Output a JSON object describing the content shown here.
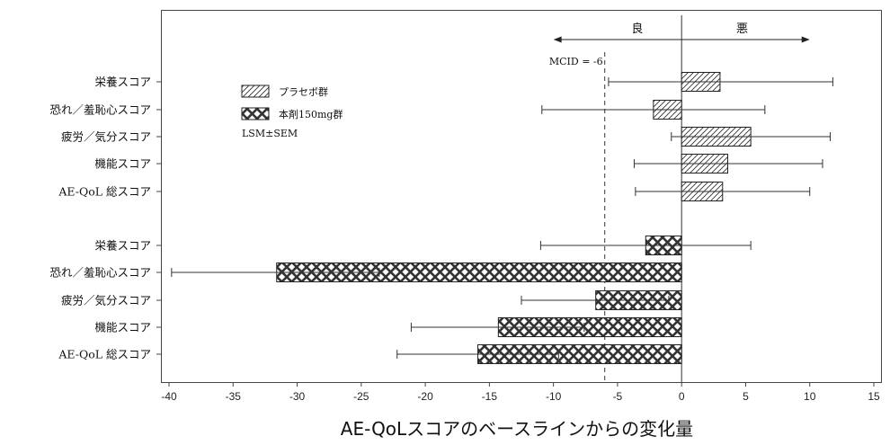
{
  "chart_data": {
    "type": "bar",
    "orientation": "horizontal",
    "xlabel": "AE-QoLスコアのベースラインからの変化量",
    "xlim": [
      -40,
      15
    ],
    "xticks": [
      -40,
      -35,
      -30,
      -25,
      -20,
      -15,
      -10,
      -5,
      0,
      5,
      10,
      15
    ],
    "grid": false,
    "legend_position": "upper-left inside plot",
    "legend_note": "LSM±SEM",
    "mcid": {
      "value": -6,
      "label": "MCID = -6"
    },
    "direction_labels": {
      "good": "良",
      "bad": "悪"
    },
    "series": [
      {
        "name": "プラセボ群",
        "pattern": "diagonal-hatch",
        "categories": [
          "栄養スコア",
          "恐れ／羞恥心スコア",
          "疲労／気分スコア",
          "機能スコア",
          "AE-QoL 総スコア"
        ],
        "values": [
          3.0,
          -2.2,
          5.4,
          3.6,
          3.2
        ],
        "err_low": [
          -5.7,
          -10.9,
          -0.8,
          -3.7,
          -3.6
        ],
        "err_high": [
          11.8,
          6.5,
          11.6,
          11.0,
          10.0
        ]
      },
      {
        "name": "本剤150mg群",
        "pattern": "cross-hatch",
        "categories": [
          "栄養スコア",
          "恐れ／羞恥心スコア",
          "疲労／気分スコア",
          "機能スコア",
          "AE-QoL 総スコア"
        ],
        "values": [
          -2.8,
          -31.6,
          -6.7,
          -14.3,
          -15.9
        ],
        "err_low": [
          -11.0,
          -39.8,
          -12.5,
          -21.1,
          -22.2
        ],
        "err_high": [
          5.4,
          -23.6,
          -1.0,
          -7.6,
          -9.6
        ]
      }
    ]
  }
}
